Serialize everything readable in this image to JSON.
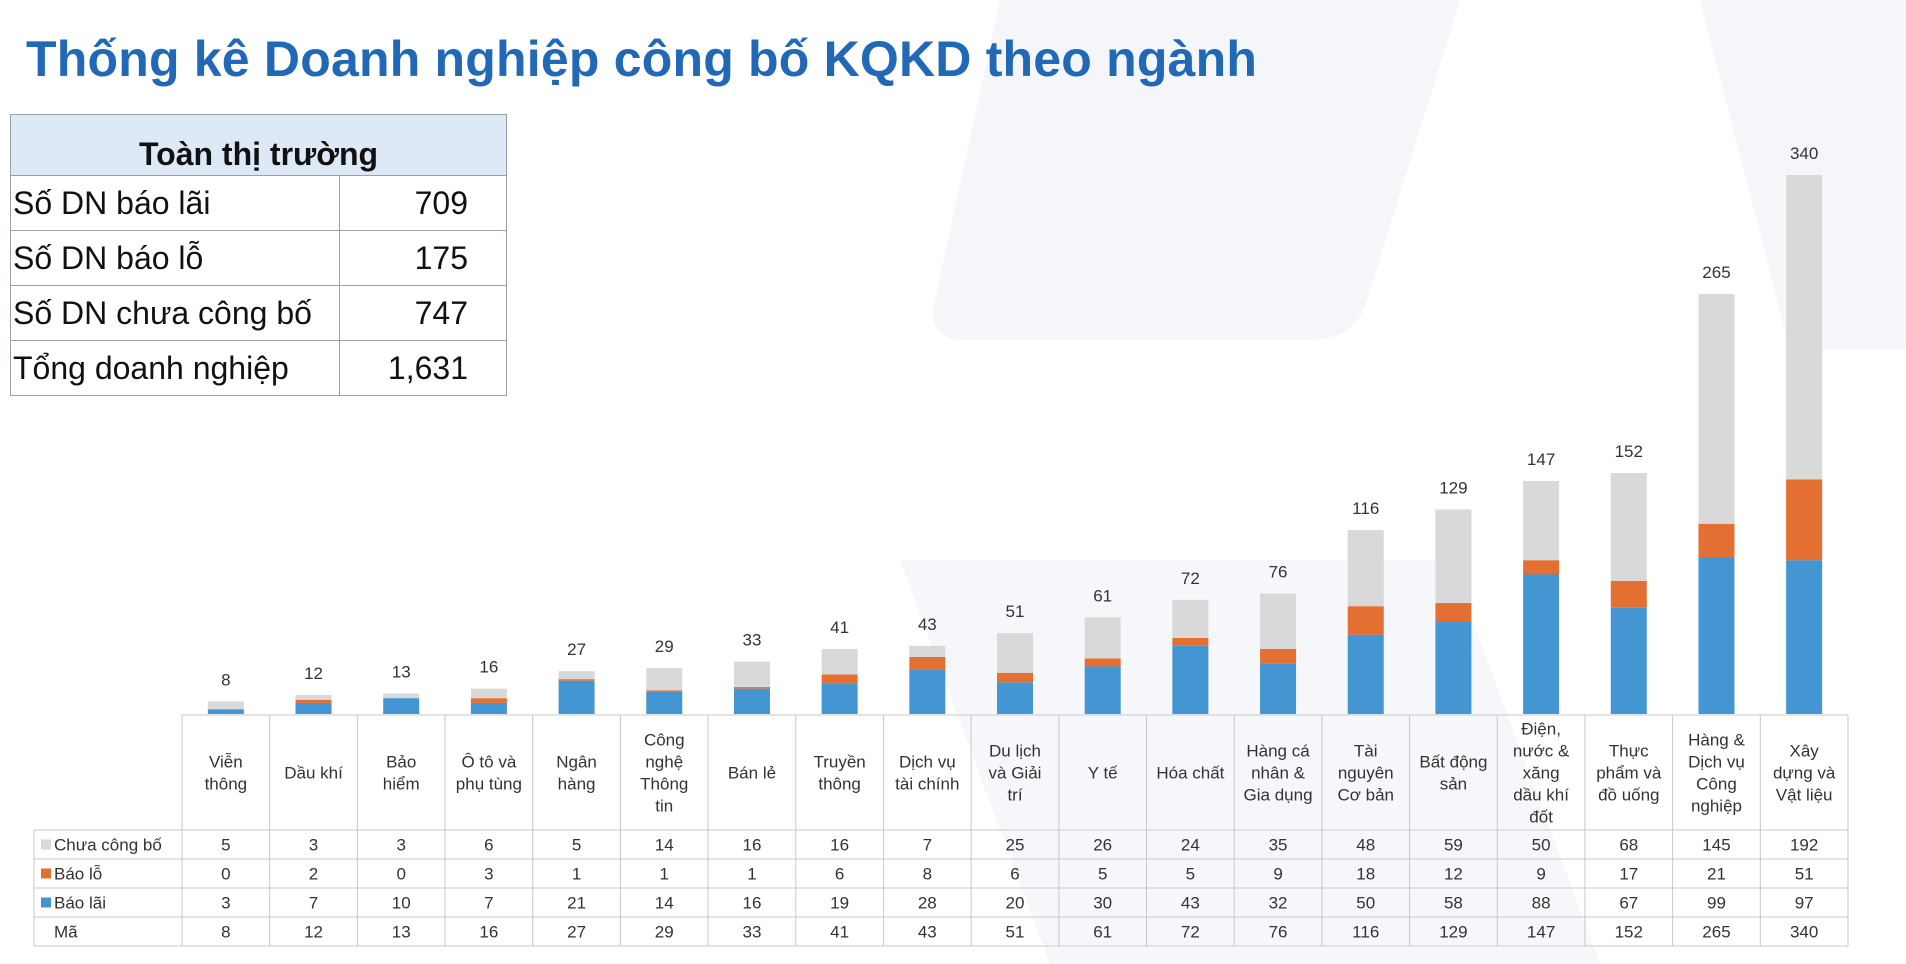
{
  "title": "Thống kê Doanh nghiệp công bố KQKD theo ngành",
  "summary": {
    "header": "Toàn thị trường",
    "rows": [
      {
        "label": "Số DN báo lãi",
        "value": "709"
      },
      {
        "label": "Số DN báo lỗ",
        "value": "175"
      },
      {
        "label": "Số DN chưa công bố",
        "value": "747"
      },
      {
        "label": "Tổng doanh nghiệp",
        "value": "1,631"
      }
    ]
  },
  "colors": {
    "bao_lai": "#4396d1",
    "bao_lo": "#e36f32",
    "chua_cong_bo": "#d9d9d9",
    "title": "#2168b6",
    "table_header_bg": "#dde9f6"
  },
  "chart_data": {
    "type": "bar",
    "stacked": true,
    "title": "Thống kê Doanh nghiệp công bố KQKD theo ngành",
    "categories": [
      [
        "Viễn",
        "thông"
      ],
      [
        "Dầu khí"
      ],
      [
        "Bảo",
        "hiểm"
      ],
      [
        "Ô tô và",
        "phụ tùng"
      ],
      [
        "Ngân",
        "hàng"
      ],
      [
        "Công",
        "nghệ",
        "Thông",
        "tin"
      ],
      [
        "Bán lẻ"
      ],
      [
        "Truyền",
        "thông"
      ],
      [
        "Dịch vụ",
        "tài chính"
      ],
      [
        "Du lịch",
        "và Giải",
        "trí"
      ],
      [
        "Y tế"
      ],
      [
        "Hóa chất"
      ],
      [
        "Hàng cá",
        "nhân &",
        "Gia dụng"
      ],
      [
        "Tài",
        "nguyên",
        "Cơ bản"
      ],
      [
        "Bất động",
        "sản"
      ],
      [
        "Điện,",
        "nước &",
        "xăng",
        "dầu khí",
        "đốt"
      ],
      [
        "Thực",
        "phẩm và",
        "đồ uống"
      ],
      [
        "Hàng &",
        "Dịch vụ",
        "Công",
        "nghiệp"
      ],
      [
        "Xây",
        "dựng và",
        "Vật liệu"
      ]
    ],
    "series": [
      {
        "name": "Báo lãi",
        "color": "#4396d1",
        "values": [
          3,
          7,
          10,
          7,
          21,
          14,
          16,
          19,
          28,
          20,
          30,
          43,
          32,
          50,
          58,
          88,
          67,
          99,
          97
        ]
      },
      {
        "name": "Báo lỗ",
        "color": "#e36f32",
        "values": [
          0,
          2,
          0,
          3,
          1,
          1,
          1,
          6,
          8,
          6,
          5,
          5,
          9,
          18,
          12,
          9,
          17,
          21,
          51
        ]
      },
      {
        "name": "Chưa công bố",
        "color": "#d9d9d9",
        "values": [
          5,
          3,
          3,
          6,
          5,
          14,
          16,
          16,
          7,
          25,
          26,
          24,
          35,
          48,
          59,
          50,
          68,
          145,
          192
        ]
      }
    ],
    "totals_label": "Mã",
    "totals": [
      8,
      12,
      13,
      16,
      27,
      29,
      33,
      41,
      43,
      51,
      61,
      72,
      76,
      116,
      129,
      147,
      152,
      265,
      340
    ],
    "table_row_order": [
      "Chưa công bố",
      "Báo lỗ",
      "Báo lãi"
    ],
    "ylim": [
      0,
      340
    ],
    "xlabel": "",
    "ylabel": ""
  }
}
